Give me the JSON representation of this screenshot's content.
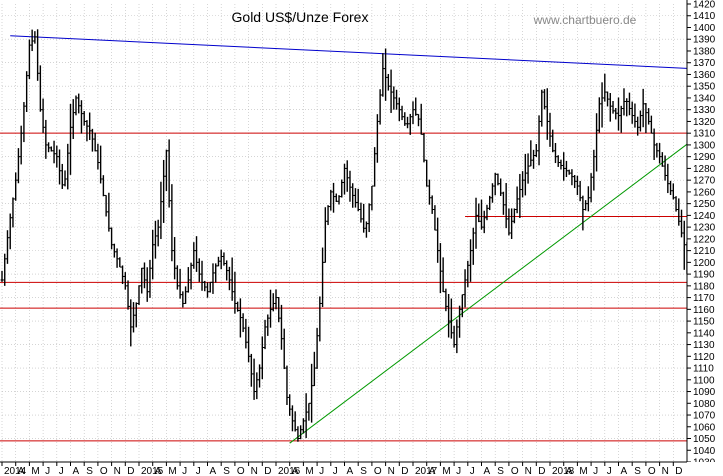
{
  "chart_data": {
    "type": "bar",
    "subtype": "ohlc",
    "title": "Gold US$/Unze Forex",
    "source": "www.chartbuero.de",
    "y_axis": {
      "position": "right",
      "min": 1030,
      "max": 1420,
      "step": 10
    },
    "x_axis": {
      "labels": [
        "2014",
        "A",
        "M",
        "J",
        "J",
        "A",
        "S",
        "O",
        "N",
        "D",
        "2015",
        "A",
        "M",
        "J",
        "J",
        "A",
        "S",
        "O",
        "N",
        "D",
        "2016",
        "A",
        "M",
        "J",
        "J",
        "A",
        "S",
        "O",
        "N",
        "D",
        "2017",
        "A",
        "M",
        "J",
        "J",
        "A",
        "S",
        "O",
        "N",
        "D",
        "2018",
        "A",
        "M",
        "J",
        "J",
        "A",
        "S",
        "O",
        "N",
        "D"
      ],
      "start": "2014-03",
      "end": "2018-12"
    },
    "grid": true,
    "colors": {
      "price": "#000000",
      "resistance": "#cc0000",
      "top_trend": "#0000cc",
      "up_trend": "#009900",
      "grid": "#bbbbbb"
    },
    "horizontal_lines": [
      {
        "value": 1310,
        "color": "#cc0000"
      },
      {
        "value": 1183,
        "color": "#cc0000"
      },
      {
        "value": 1161,
        "color": "#cc0000"
      },
      {
        "value": 1048,
        "color": "#cc0000"
      },
      {
        "value": 1239,
        "color": "#cc0000",
        "from_month": 33.8
      }
    ],
    "trend_lines": [
      {
        "color": "#0000cc",
        "from": [
          0.6,
          1393
        ],
        "to": [
          57.4,
          1361
        ]
      },
      {
        "color": "#009900",
        "from": [
          21.0,
          1046
        ],
        "to": [
          50.5,
          1305
        ]
      }
    ],
    "price_path": [
      [
        0,
        1185
      ],
      [
        0.5,
        1230
      ],
      [
        1,
        1270
      ],
      [
        1.5,
        1320
      ],
      [
        2,
        1385
      ],
      [
        2.4,
        1392
      ],
      [
        2.8,
        1330
      ],
      [
        3.2,
        1300
      ],
      [
        3.6,
        1295
      ],
      [
        4,
        1290
      ],
      [
        4.5,
        1260
      ],
      [
        5,
        1315
      ],
      [
        5.4,
        1340
      ],
      [
        6,
        1320
      ],
      [
        6.5,
        1310
      ],
      [
        7,
        1285
      ],
      [
        7.5,
        1250
      ],
      [
        8,
        1215
      ],
      [
        8.5,
        1200
      ],
      [
        9,
        1180
      ],
      [
        9.4,
        1145
      ],
      [
        9.8,
        1165
      ],
      [
        10.2,
        1195
      ],
      [
        10.6,
        1175
      ],
      [
        11,
        1215
      ],
      [
        11.4,
        1230
      ],
      [
        12,
        1295
      ],
      [
        12.4,
        1210
      ],
      [
        12.8,
        1180
      ],
      [
        13.2,
        1165
      ],
      [
        13.6,
        1185
      ],
      [
        14,
        1210
      ],
      [
        14.5,
        1185
      ],
      [
        15,
        1175
      ],
      [
        15.5,
        1195
      ],
      [
        16,
        1205
      ],
      [
        16.5,
        1190
      ],
      [
        17,
        1165
      ],
      [
        17.5,
        1150
      ],
      [
        18,
        1120
      ],
      [
        18.4,
        1090
      ],
      [
        18.8,
        1110
      ],
      [
        19.2,
        1145
      ],
      [
        19.6,
        1160
      ],
      [
        20,
        1170
      ],
      [
        20.4,
        1135
      ],
      [
        20.8,
        1085
      ],
      [
        21.2,
        1065
      ],
      [
        21.6,
        1050
      ],
      [
        22,
        1065
      ],
      [
        22.4,
        1080
      ],
      [
        22.8,
        1110
      ],
      [
        23.2,
        1165
      ],
      [
        23.6,
        1235
      ],
      [
        24,
        1260
      ],
      [
        24.5,
        1250
      ],
      [
        25,
        1280
      ],
      [
        25.5,
        1260
      ],
      [
        26,
        1245
      ],
      [
        26.5,
        1225
      ],
      [
        27,
        1265
      ],
      [
        27.4,
        1320
      ],
      [
        27.8,
        1365
      ],
      [
        28.2,
        1350
      ],
      [
        28.6,
        1340
      ],
      [
        29,
        1330
      ],
      [
        29.5,
        1315
      ],
      [
        30,
        1330
      ],
      [
        30.5,
        1320
      ],
      [
        31,
        1265
      ],
      [
        31.4,
        1245
      ],
      [
        31.8,
        1210
      ],
      [
        32.2,
        1175
      ],
      [
        32.6,
        1150
      ],
      [
        33,
        1130
      ],
      [
        33.4,
        1160
      ],
      [
        33.8,
        1185
      ],
      [
        34.2,
        1210
      ],
      [
        34.6,
        1240
      ],
      [
        35,
        1230
      ],
      [
        35.5,
        1250
      ],
      [
        36,
        1275
      ],
      [
        36.5,
        1255
      ],
      [
        37,
        1225
      ],
      [
        37.5,
        1250
      ],
      [
        38,
        1270
      ],
      [
        38.5,
        1285
      ],
      [
        39,
        1295
      ],
      [
        39.4,
        1345
      ],
      [
        39.8,
        1320
      ],
      [
        40.2,
        1295
      ],
      [
        40.6,
        1285
      ],
      [
        41,
        1280
      ],
      [
        41.5,
        1275
      ],
      [
        42,
        1265
      ],
      [
        42.4,
        1245
      ],
      [
        42.8,
        1255
      ],
      [
        43.2,
        1290
      ],
      [
        43.6,
        1335
      ],
      [
        44,
        1345
      ],
      [
        44.5,
        1330
      ],
      [
        45,
        1325
      ],
      [
        45.5,
        1340
      ],
      [
        46,
        1325
      ],
      [
        46.4,
        1315
      ],
      [
        46.8,
        1335
      ],
      [
        47.2,
        1320
      ],
      [
        47.6,
        1300
      ],
      [
        48,
        1290
      ],
      [
        48.5,
        1270
      ],
      [
        49,
        1255
      ],
      [
        49.5,
        1230
      ],
      [
        50,
        1205
      ],
      [
        50.4,
        1195
      ],
      [
        50.8,
        1185
      ],
      [
        51.2,
        1200
      ],
      [
        51.6,
        1190
      ],
      [
        52,
        1195
      ]
    ]
  }
}
